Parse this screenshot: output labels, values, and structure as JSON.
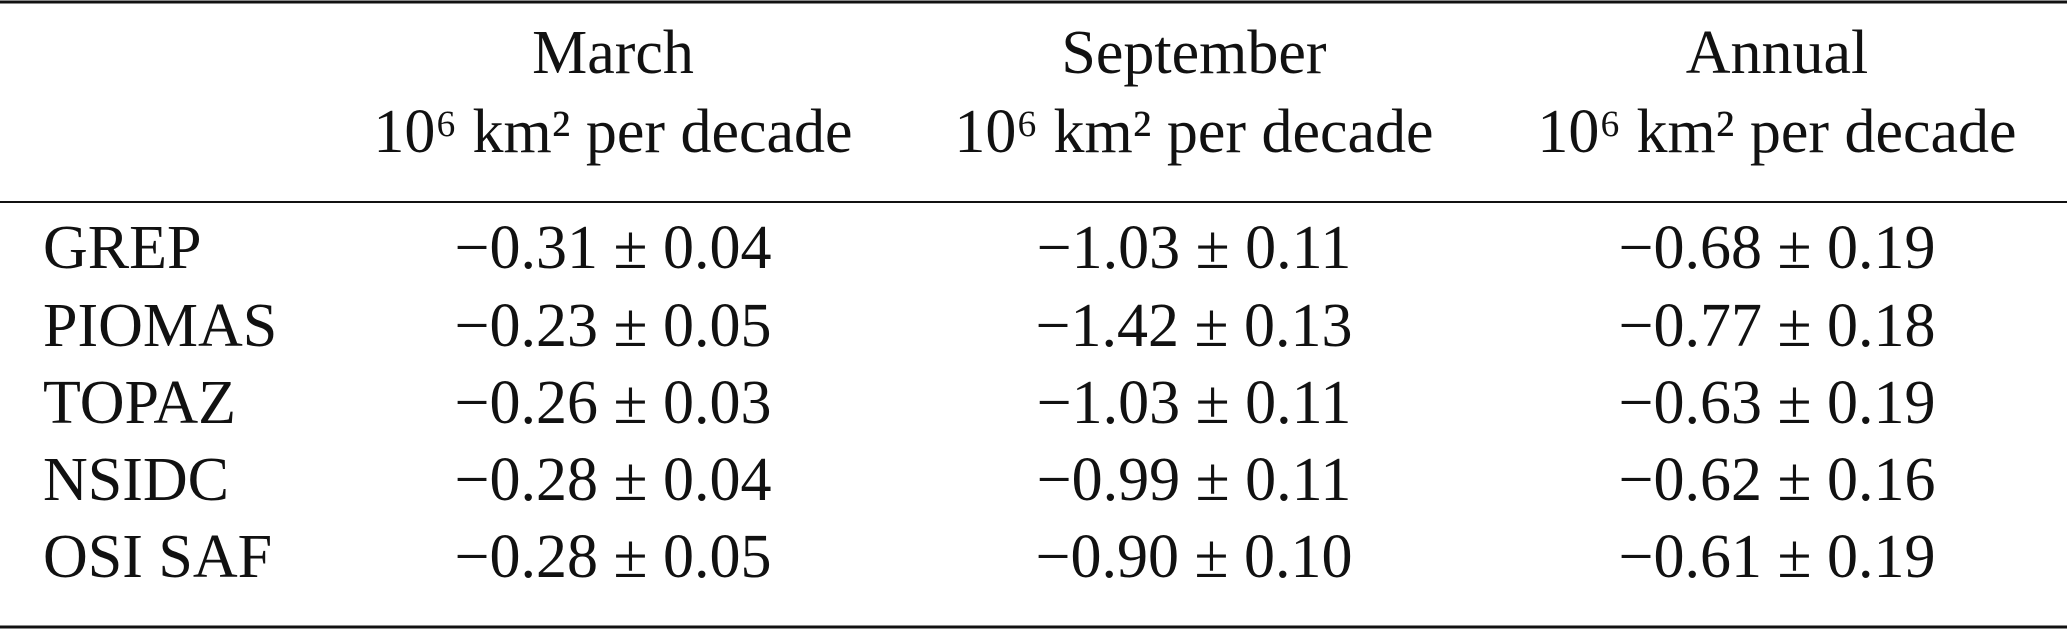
{
  "table": {
    "columns": [
      {
        "title": "March",
        "unit": "10⁶ km² per decade"
      },
      {
        "title": "September",
        "unit": "10⁶ km² per decade"
      },
      {
        "title": "Annual",
        "unit": "10⁶ km² per decade"
      }
    ],
    "rows": [
      [
        "GREP",
        "−0.31 ± 0.04",
        "−1.03 ± 0.11",
        "−0.68 ± 0.19"
      ],
      [
        "PIOMAS",
        "−0.23 ± 0.05",
        "−1.42 ± 0.13",
        "−0.77 ± 0.18"
      ],
      [
        "TOPAZ",
        "−0.26 ± 0.03",
        "−1.03 ± 0.11",
        "−0.63 ± 0.19"
      ],
      [
        "NSIDC",
        "−0.28 ± 0.04",
        "−0.99 ± 0.11",
        "−0.62 ± 0.16"
      ],
      [
        "OSI SAF",
        "−0.28 ± 0.05",
        "−0.90 ± 0.10",
        "−0.61 ± 0.19"
      ]
    ]
  }
}
